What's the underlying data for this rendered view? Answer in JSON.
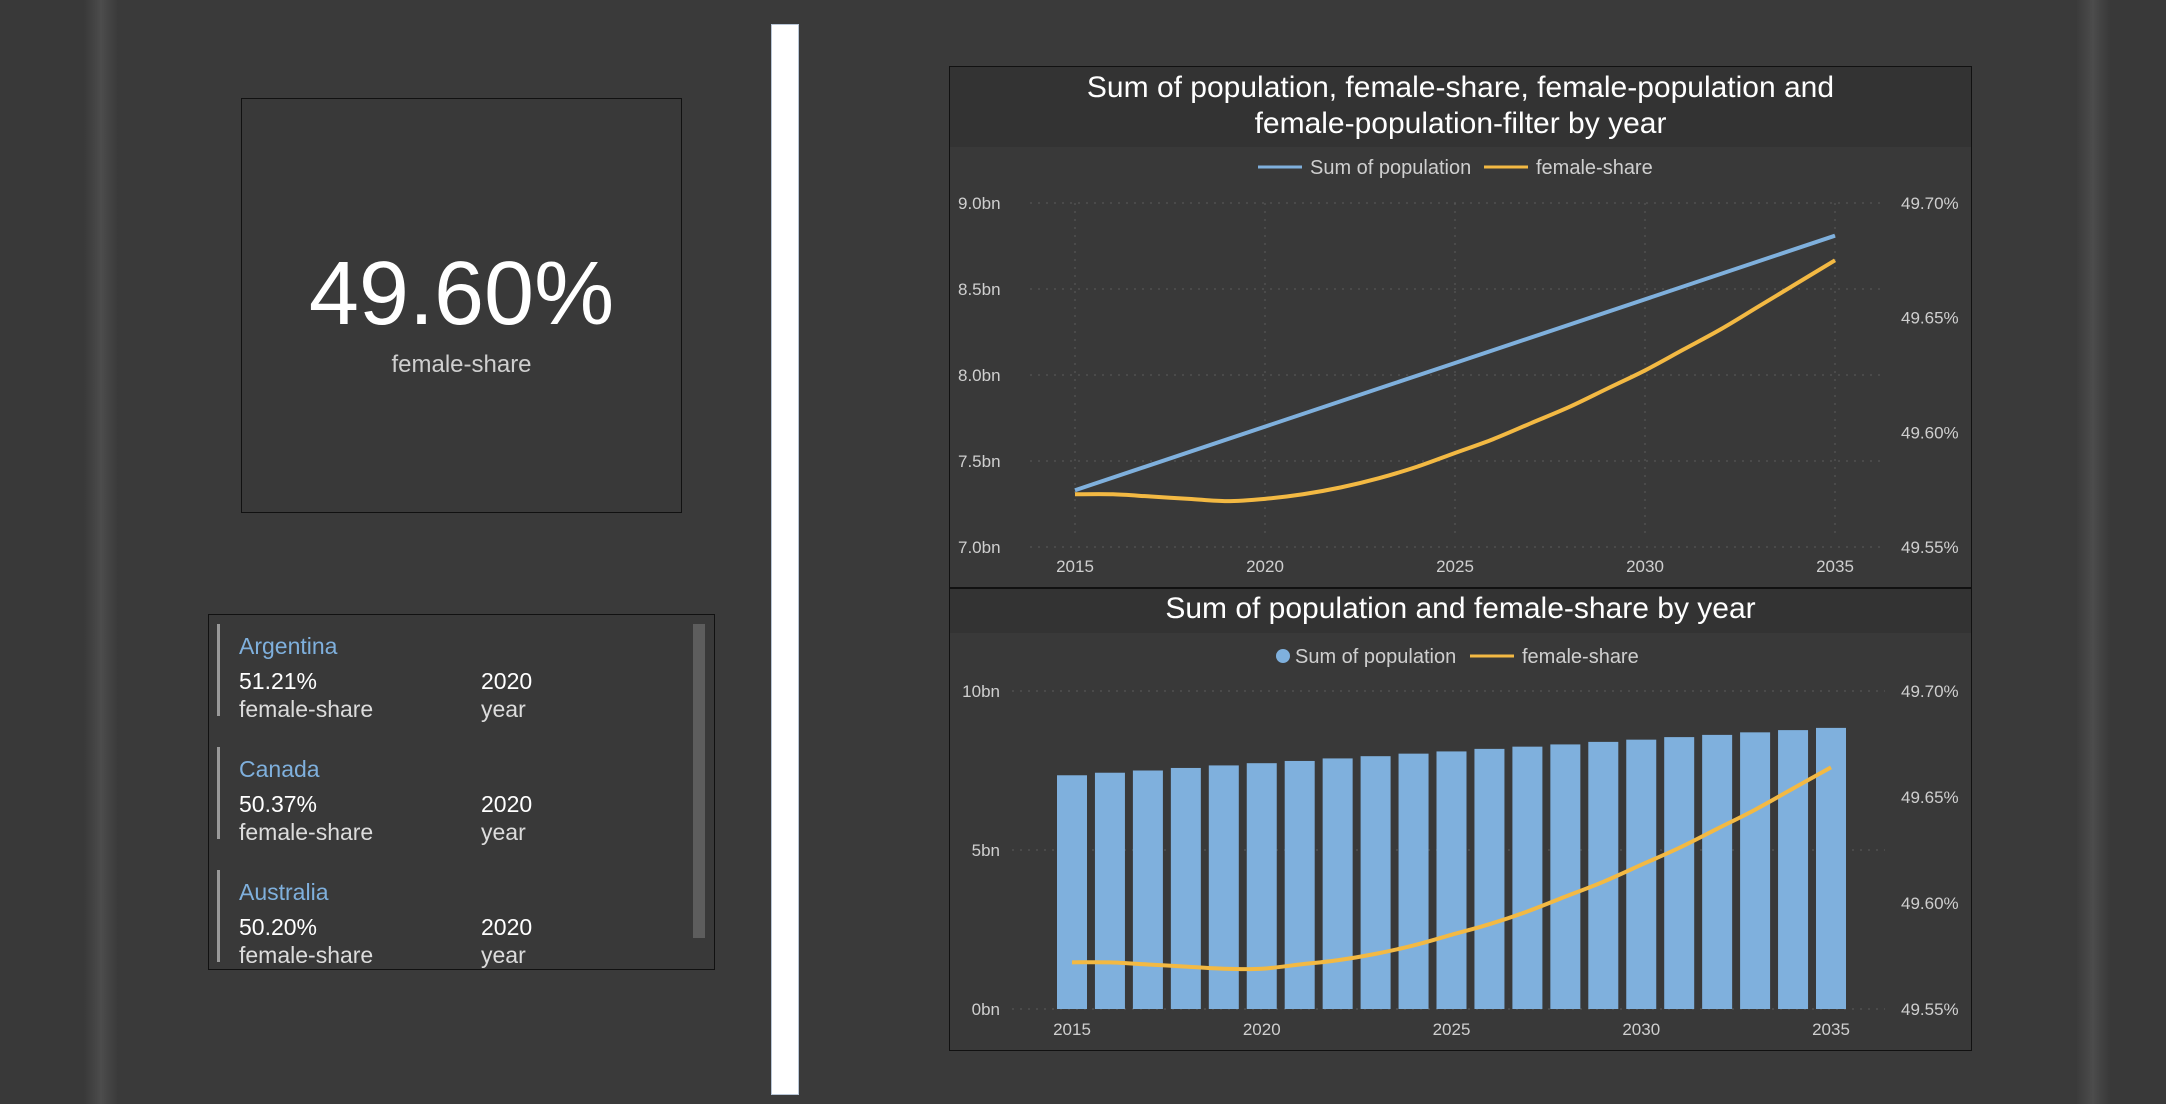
{
  "kpi": {
    "value": "49.60%",
    "label": "female-share"
  },
  "list": {
    "items": [
      {
        "name": "Argentina",
        "value": "51.21%",
        "value_label": "female-share",
        "year": "2020",
        "year_label": "year"
      },
      {
        "name": "Canada",
        "value": "50.37%",
        "value_label": "female-share",
        "year": "2020",
        "year_label": "year"
      },
      {
        "name": "Australia",
        "value": "50.20%",
        "value_label": "female-share",
        "year": "2020",
        "year_label": "year"
      }
    ]
  },
  "colors": {
    "population": "#7fb0dd",
    "female_share": "#f3b943",
    "grid": "#5a5a5a",
    "axis_text": "#cfcfcf"
  },
  "chart_data": [
    {
      "type": "line",
      "title_line1": "Sum of population, female-share, female-population and",
      "title_line2": "female-population-filter by year",
      "legend": [
        "Sum of population",
        "female-share"
      ],
      "x_ticks": [
        "2015",
        "2020",
        "2025",
        "2030",
        "2035"
      ],
      "y_left_ticks": [
        "9.0bn",
        "8.5bn",
        "8.0bn",
        "7.5bn",
        "7.0bn"
      ],
      "y_right_ticks": [
        "49.70%",
        "49.65%",
        "49.60%",
        "49.55%"
      ],
      "y_left_range": [
        7.0,
        9.0
      ],
      "y_right_range": [
        49.55,
        49.7
      ],
      "series": [
        {
          "name": "Sum of population",
          "axis": "left",
          "x": [
            2015,
            2035
          ],
          "values": [
            7.33,
            8.81
          ]
        },
        {
          "name": "female-share",
          "axis": "right",
          "x": [
            2015,
            2016,
            2017,
            2018,
            2019,
            2020,
            2021,
            2022,
            2023,
            2024,
            2025,
            2026,
            2027,
            2028,
            2029,
            2030,
            2031,
            2032,
            2033,
            2034,
            2035
          ],
          "values": [
            49.573,
            49.573,
            49.572,
            49.571,
            49.57,
            49.571,
            49.573,
            49.576,
            49.58,
            49.585,
            49.591,
            49.597,
            49.604,
            49.611,
            49.619,
            49.627,
            49.636,
            49.645,
            49.655,
            49.665,
            49.675
          ]
        }
      ]
    },
    {
      "type": "bar",
      "title": "Sum of population and female-share by year",
      "legend": [
        "Sum of population",
        "female-share"
      ],
      "x_ticks": [
        "2015",
        "2020",
        "2025",
        "2030",
        "2035"
      ],
      "y_left_ticks": [
        "10bn",
        "5bn",
        "0bn"
      ],
      "y_right_ticks": [
        "49.70%",
        "49.65%",
        "49.60%",
        "49.55%"
      ],
      "y_left_range": [
        0,
        10
      ],
      "y_right_range": [
        49.55,
        49.7
      ],
      "categories": [
        2015,
        2016,
        2017,
        2018,
        2019,
        2020,
        2021,
        2022,
        2023,
        2024,
        2025,
        2026,
        2027,
        2028,
        2029,
        2030,
        2031,
        2032,
        2033,
        2034,
        2035
      ],
      "series": [
        {
          "name": "Sum of population",
          "axis": "left",
          "kind": "bar",
          "values": [
            7.35,
            7.43,
            7.5,
            7.58,
            7.66,
            7.73,
            7.8,
            7.88,
            7.95,
            8.03,
            8.1,
            8.18,
            8.25,
            8.32,
            8.4,
            8.47,
            8.55,
            8.62,
            8.7,
            8.77,
            8.84
          ]
        },
        {
          "name": "female-share",
          "axis": "right",
          "kind": "line",
          "values": [
            49.572,
            49.572,
            49.571,
            49.57,
            49.569,
            49.569,
            49.571,
            49.573,
            49.576,
            49.58,
            49.585,
            49.59,
            49.596,
            49.603,
            49.61,
            49.618,
            49.626,
            49.635,
            49.644,
            49.654,
            49.664
          ]
        }
      ]
    }
  ]
}
